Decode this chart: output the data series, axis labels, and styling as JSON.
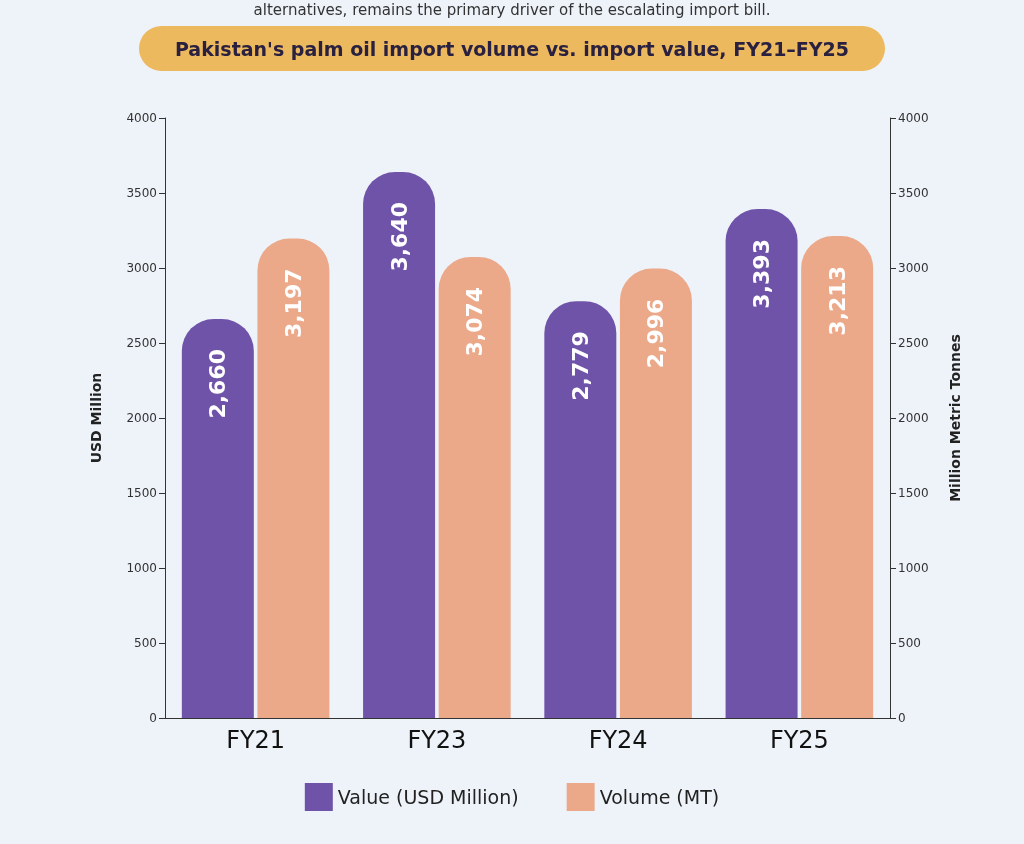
{
  "chart_data": {
    "type": "bar",
    "title": "Pakistan's palm oil import volume vs. import value, FY21–FY25",
    "annotations": [
      "alternatives, remains the primary driver of the escalating import bill."
    ],
    "categories": [
      "FY21",
      "FY23",
      "FY24",
      "FY25"
    ],
    "series": [
      {
        "name": "Value (USD Million)",
        "color": "#6f53a9",
        "values": [
          2660,
          3640,
          2779,
          3393
        ],
        "value_labels": [
          "2,660",
          "3,640",
          "2,779",
          "3,393"
        ]
      },
      {
        "name": "Volume (MT)",
        "color": "#eba98a",
        "axis": "y2",
        "values": [
          3197,
          3074,
          2996,
          3213
        ],
        "value_labels": [
          "3,197",
          "3,074",
          "2,996",
          "3,213"
        ]
      }
    ],
    "ylabel": "USD Million",
    "y2label": "Million Metric Tonnes",
    "ylim": [
      0,
      4000
    ],
    "yticks": [
      0,
      500,
      1000,
      1500,
      2000,
      2500,
      3000,
      3500,
      4000
    ],
    "y2lim": [
      0,
      4000
    ],
    "y2ticks": [
      0,
      500,
      1000,
      1500,
      2000,
      2500,
      3000,
      3500,
      4000
    ],
    "grid": false,
    "legend": "bottom"
  }
}
